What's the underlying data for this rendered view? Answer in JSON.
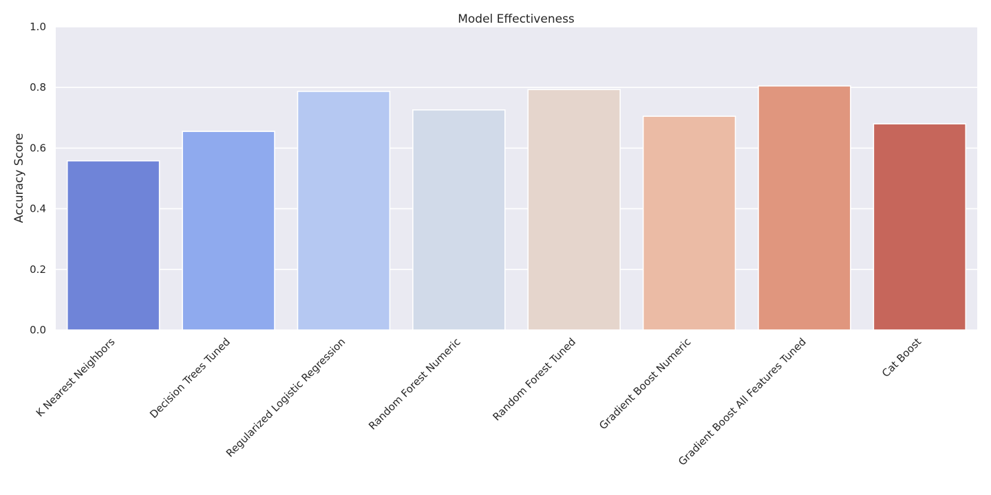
{
  "chart_data": {
    "type": "bar",
    "title": "Model Effectiveness",
    "xlabel": "",
    "ylabel": "Accuracy Score",
    "ylim": [
      0,
      1.0
    ],
    "yticks": [
      "0.0",
      "0.2",
      "0.4",
      "0.6",
      "0.8",
      "1.0"
    ],
    "grid": true,
    "categories": [
      "K Nearest Neighbors",
      "Decision Trees Tuned",
      "Regularized Logistic Regression",
      "Random Forest Numeric",
      "Random Forest Tuned",
      "Gradient Boost Numeric",
      "Gradient Boost All Features Tuned",
      "Cat Boost"
    ],
    "values": [
      0.558,
      0.655,
      0.787,
      0.726,
      0.793,
      0.705,
      0.805,
      0.68
    ],
    "colors": [
      "#6f84d8",
      "#8faaee",
      "#b5c8f2",
      "#d1dae9",
      "#e5d5cc",
      "#ebbba5",
      "#e0967e",
      "#c6665b"
    ],
    "background": "#eaeaf2",
    "grid_color": "#ffffff"
  }
}
